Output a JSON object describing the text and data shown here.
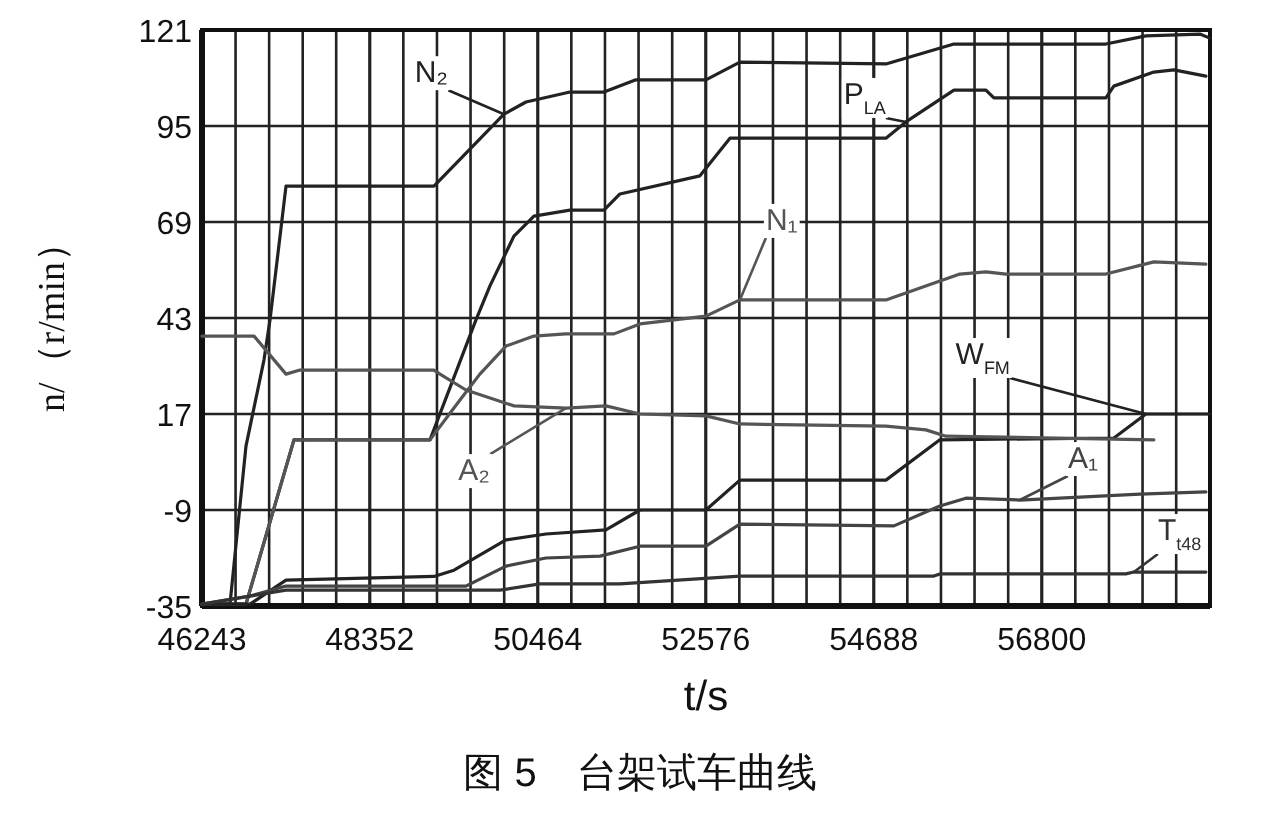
{
  "chart_data": {
    "type": "line",
    "title": "图 5　台架试车曲线",
    "xlabel": "t/s",
    "ylabel": "n/（r/min）",
    "xlim": [
      46243,
      58915
    ],
    "ylim": [
      -35,
      121
    ],
    "xticks": [
      46243,
      {
        "value": 46665,
        "label": null
      },
      {
        "value": 47087,
        "label": null
      },
      {
        "value": 47509,
        "label": null
      },
      {
        "value": 47930,
        "label": null
      },
      48352,
      {
        "value": 48774,
        "label": null
      },
      {
        "value": 49197,
        "label": null
      },
      {
        "value": 49619,
        "label": null
      },
      {
        "value": 50042,
        "label": null
      },
      50464,
      {
        "value": 50886,
        "label": null
      },
      {
        "value": 51309,
        "label": null
      },
      {
        "value": 51731,
        "label": null
      },
      {
        "value": 52154,
        "label": null
      },
      52576,
      {
        "value": 52998,
        "label": null
      },
      {
        "value": 53421,
        "label": null
      },
      {
        "value": 53843,
        "label": null
      },
      {
        "value": 54266,
        "label": null
      },
      54688,
      {
        "value": 55110,
        "label": null
      },
      {
        "value": 55533,
        "label": null
      },
      {
        "value": 55955,
        "label": null
      },
      {
        "value": 56378,
        "label": null
      },
      56800,
      {
        "value": 57222,
        "label": null
      },
      {
        "value": 57645,
        "label": null
      },
      {
        "value": 58067,
        "label": null
      },
      {
        "value": 58490,
        "label": null
      }
    ],
    "yticks": [
      -35,
      -9,
      17,
      43,
      69,
      95,
      121
    ],
    "grid": true,
    "legend": false,
    "marker": "none",
    "line_style": "solid",
    "series": [
      {
        "name": "N₂",
        "color": "#222222",
        "x": [
          46243,
          46595,
          46796,
          47022,
          47098,
          47299,
          49159,
          50039,
          50316,
          50869,
          51296,
          51698,
          52578,
          53005,
          54841,
          55696,
          57606,
          58109,
          58787,
          58913
        ],
        "values": [
          -34.5,
          -34.5,
          8.3,
          31.6,
          42.5,
          78.7,
          78.7,
          98.2,
          101.5,
          104.2,
          104.2,
          107.5,
          107.5,
          112.3,
          111.8,
          117.2,
          117.2,
          119.4,
          119.9,
          118.8
        ]
      },
      {
        "name": "P$_{LA}$",
        "color": "#222222",
        "x": [
          46243,
          46796,
          47399,
          49109,
          49687,
          49863,
          50165,
          50416,
          50869,
          51296,
          51497,
          52503,
          52880,
          54841,
          55092,
          55696,
          56098,
          56198,
          57606,
          57706,
          58209,
          58461,
          58863
        ],
        "values": [
          -34.5,
          -34.5,
          10,
          10,
          42.5,
          51.7,
          65.2,
          70.6,
          72.2,
          72.2,
          76.6,
          81.5,
          91.7,
          91.7,
          96.1,
          104.7,
          104.7,
          102.6,
          102.6,
          105.8,
          109.6,
          110.2,
          108.5
        ]
      },
      {
        "name": "N₁",
        "color": "#555555",
        "x": [
          46243,
          46796,
          47399,
          49109,
          49486,
          49736,
          50064,
          50416,
          50818,
          51422,
          51749,
          52578,
          53005,
          54841,
          55771,
          56098,
          56349,
          57606,
          58209,
          58863
        ],
        "values": [
          -34.5,
          -34.5,
          10,
          10,
          20.8,
          27.8,
          35.4,
          38.1,
          38.7,
          38.7,
          41.4,
          43.5,
          47.9,
          47.9,
          54.9,
          55.5,
          54.9,
          54.9,
          58.2,
          57.6
        ]
      },
      {
        "name": "W$_{FM}$",
        "color": "#222222",
        "x": [
          46243,
          46846,
          47299,
          49159,
          49411,
          50064,
          50567,
          51321,
          51749,
          52578,
          53005,
          54841,
          55519,
          57707,
          58109,
          58913
        ],
        "values": [
          -34.5,
          -34.5,
          -28,
          -27,
          -25.3,
          -17.1,
          -15.5,
          -14.4,
          -9,
          -9,
          -0.9,
          -0.9,
          10,
          10.5,
          17,
          17
        ]
      },
      {
        "name": "A₂",
        "color": "#555555",
        "x": [
          46243,
          46897,
          47299,
          47475,
          49159,
          49235,
          49561,
          50165,
          50818,
          51321,
          51749,
          52578,
          53005,
          54841,
          55344,
          55595,
          58210
        ],
        "values": [
          38.1,
          38.1,
          27.8,
          28.9,
          28.9,
          27.8,
          23.5,
          19.2,
          18.6,
          19.2,
          17,
          16.5,
          14.3,
          13.7,
          12.7,
          11,
          10
        ]
      },
      {
        "name": "A₁",
        "color": "#444444",
        "x": [
          46243,
          46846,
          47299,
          49561,
          50064,
          50567,
          51246,
          51749,
          52578,
          53005,
          54941,
          55519,
          55846,
          56525,
          58033,
          58863
        ],
        "values": [
          -34.5,
          -32.3,
          -29.6,
          -29.6,
          -24.2,
          -22,
          -21.5,
          -18.8,
          -18.8,
          -12.8,
          -13.3,
          -7.9,
          -5.8,
          -6.3,
          -4.7,
          -4.1
        ]
      },
      {
        "name": "T$_{t48}$",
        "color": "#333333",
        "x": [
          46243,
          47299,
          49989,
          50492,
          51497,
          53005,
          55444,
          55519,
          57857,
          57958,
          58863
        ],
        "values": [
          -34.5,
          -30.7,
          -30.7,
          -29,
          -29,
          -26.9,
          -26.9,
          -26.3,
          -26.3,
          -25.8,
          -25.8
        ]
      }
    ]
  }
}
